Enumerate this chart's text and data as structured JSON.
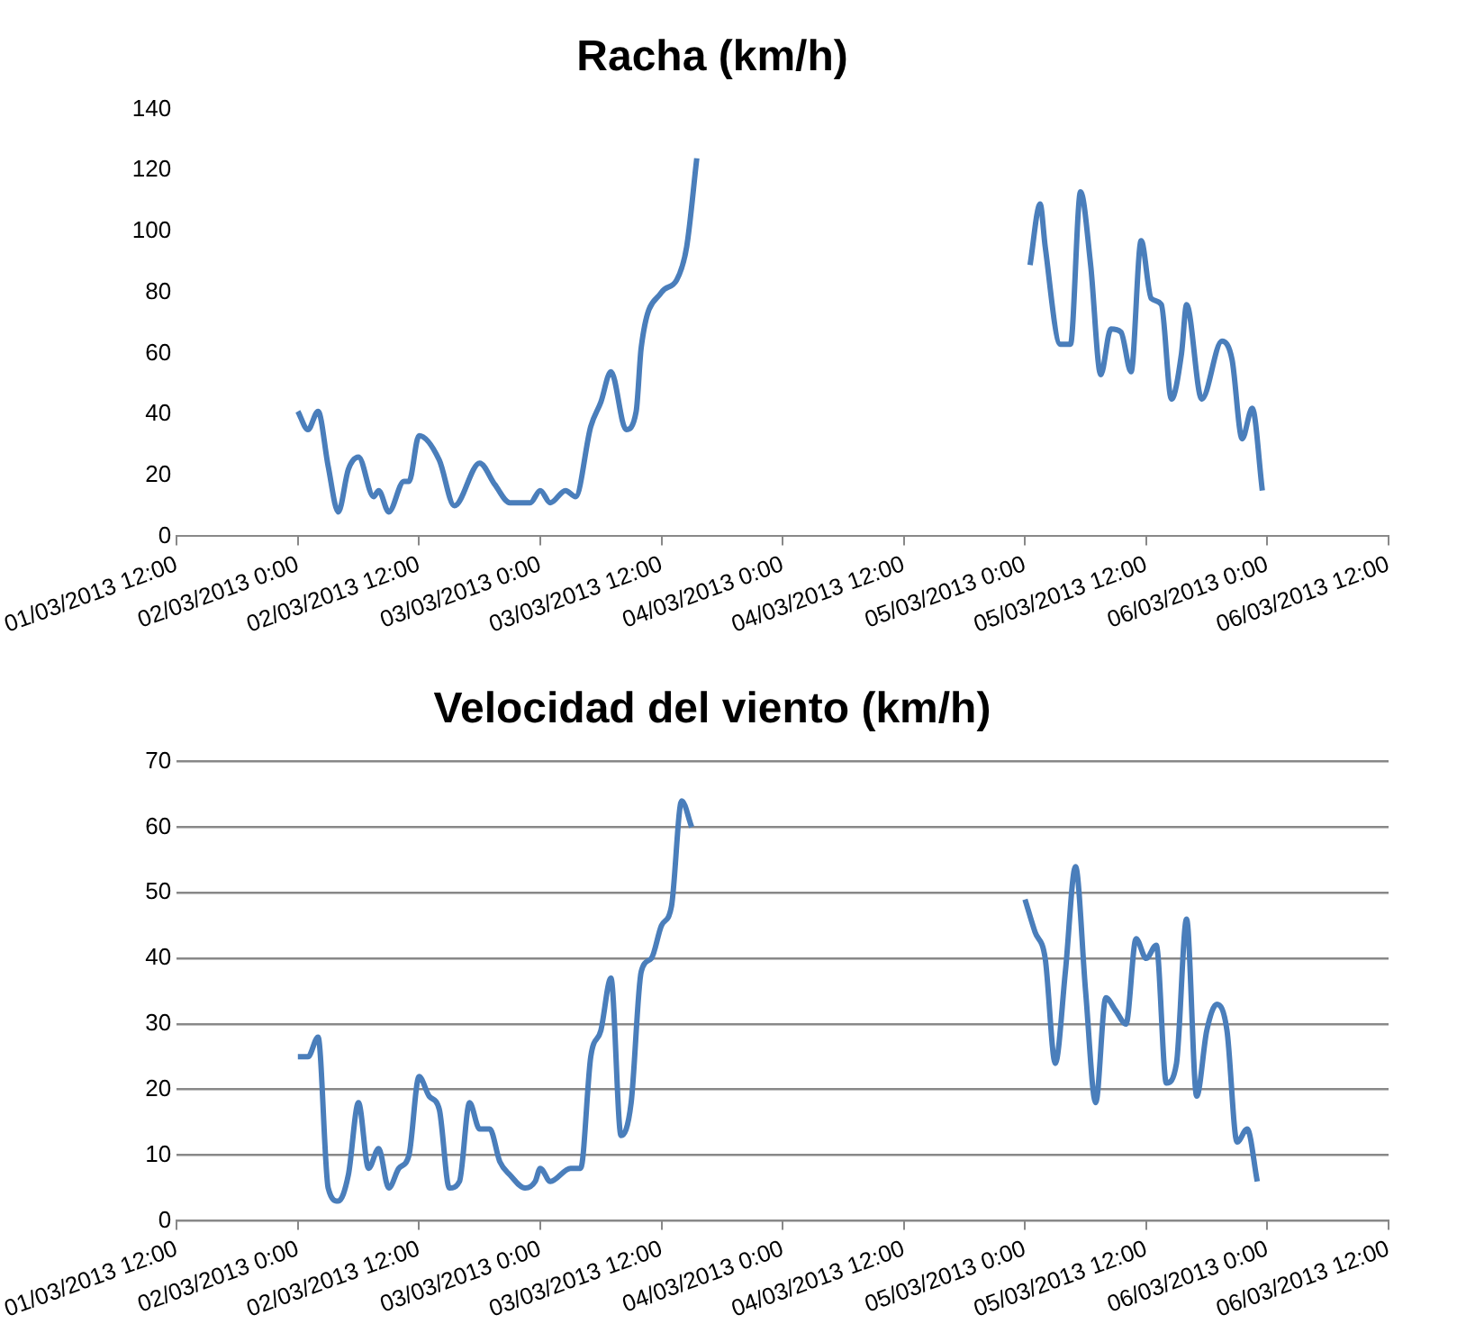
{
  "chart_data": [
    {
      "type": "line",
      "title": "Racha (km/h)",
      "grid": false,
      "marker": "none",
      "line_style": "solid",
      "legend": false,
      "x": [
        "2013-03-02T00:00",
        "2013-03-02T01:00",
        "2013-03-02T02:00",
        "2013-03-02T03:00",
        "2013-03-02T04:00",
        "2013-03-02T05:00",
        "2013-03-02T06:00",
        "2013-03-02T07:30",
        "2013-03-02T08:00",
        "2013-03-02T09:00",
        "2013-03-02T10:30",
        "2013-03-02T11:00",
        "2013-03-02T12:00",
        "2013-03-02T14:00",
        "2013-03-02T15:30",
        "2013-03-02T18:00",
        "2013-03-02T19:30",
        "2013-03-02T21:00",
        "2013-03-02T23:00",
        "2013-03-03T00:00",
        "2013-03-03T01:00",
        "2013-03-03T02:30",
        "2013-03-03T03:30",
        "2013-03-03T05:00",
        "2013-03-03T06:00",
        "2013-03-03T07:00",
        "2013-03-03T08:30",
        "2013-03-03T09:30",
        "2013-03-03T10:00",
        "2013-03-03T12:00",
        "2013-03-03T13:30",
        "2013-03-03T14:30",
        "2013-03-03T15:30",
        "2013-03-04T12:00",
        "2013-03-05T00:30",
        "2013-03-05T01:30",
        "2013-03-05T02:00",
        "2013-03-05T03:30",
        "2013-03-05T04:30",
        "2013-03-05T05:30",
        "2013-03-05T06:30",
        "2013-03-05T07:30",
        "2013-03-05T08:30",
        "2013-03-05T09:30",
        "2013-03-05T10:30",
        "2013-03-05T11:30",
        "2013-03-05T12:30",
        "2013-03-05T13:30",
        "2013-03-05T14:30",
        "2013-03-05T15:30",
        "2013-03-05T16:00",
        "2013-03-05T17:30",
        "2013-03-05T19:30",
        "2013-03-05T20:30",
        "2013-03-05T21:30",
        "2013-03-05T22:30",
        "2013-03-05T23:30"
      ],
      "series": [
        {
          "color": "#4a7ebb",
          "values": [
            41,
            35,
            41,
            23,
            8,
            22,
            26,
            13,
            15,
            8,
            18,
            18,
            33,
            25,
            10,
            24,
            17,
            11,
            11,
            15,
            11,
            15,
            13,
            36,
            44,
            54,
            35,
            41,
            62,
            80,
            84,
            95,
            124,
            null,
            89,
            109,
            95,
            63,
            63,
            113,
            89,
            53,
            68,
            67,
            54,
            97,
            78,
            76,
            45,
            60,
            76,
            45,
            64,
            58,
            32,
            42,
            15
          ]
        }
      ],
      "ylim": [
        0,
        140
      ],
      "yticks": [
        0,
        20,
        40,
        60,
        80,
        100,
        120,
        140
      ],
      "xlim": [
        "2013-03-01T12:00",
        "2013-03-06T12:00"
      ],
      "xticks": [
        {
          "value": "2013-03-01T12:00",
          "label": "01/03/2013 12:00"
        },
        {
          "value": "2013-03-02T00:00",
          "label": "02/03/2013 0:00"
        },
        {
          "value": "2013-03-02T12:00",
          "label": "02/03/2013 12:00"
        },
        {
          "value": "2013-03-03T00:00",
          "label": "03/03/2013 0:00"
        },
        {
          "value": "2013-03-03T12:00",
          "label": "03/03/2013 12:00"
        },
        {
          "value": "2013-03-04T00:00",
          "label": "04/03/2013 0:00"
        },
        {
          "value": "2013-03-04T12:00",
          "label": "04/03/2013 12:00"
        },
        {
          "value": "2013-03-05T00:00",
          "label": "05/03/2013 0:00"
        },
        {
          "value": "2013-03-05T12:00",
          "label": "05/03/2013 12:00"
        },
        {
          "value": "2013-03-06T00:00",
          "label": "06/03/2013 0:00"
        },
        {
          "value": "2013-03-06T12:00",
          "label": "06/03/2013 12:00"
        }
      ]
    },
    {
      "type": "line",
      "title": "Velocidad del viento (km/h)",
      "grid": "y",
      "marker": "none",
      "line_style": "solid",
      "legend": false,
      "x": [
        "2013-03-02T00:00",
        "2013-03-02T01:00",
        "2013-03-02T02:00",
        "2013-03-02T03:00",
        "2013-03-02T04:00",
        "2013-03-02T05:00",
        "2013-03-02T06:00",
        "2013-03-02T07:00",
        "2013-03-02T08:00",
        "2013-03-02T09:00",
        "2013-03-02T10:00",
        "2013-03-02T11:00",
        "2013-03-02T12:00",
        "2013-03-02T13:00",
        "2013-03-02T14:00",
        "2013-03-02T15:00",
        "2013-03-02T16:00",
        "2013-03-02T17:00",
        "2013-03-02T18:00",
        "2013-03-02T19:00",
        "2013-03-02T20:00",
        "2013-03-02T21:00",
        "2013-03-02T22:30",
        "2013-03-02T23:30",
        "2013-03-03T00:00",
        "2013-03-03T01:00",
        "2013-03-03T03:00",
        "2013-03-03T04:00",
        "2013-03-03T05:00",
        "2013-03-03T06:00",
        "2013-03-03T07:00",
        "2013-03-03T08:00",
        "2013-03-03T09:00",
        "2013-03-03T10:00",
        "2013-03-03T11:00",
        "2013-03-03T12:00",
        "2013-03-03T13:00",
        "2013-03-03T14:00",
        "2013-03-03T15:00",
        "2013-03-04T12:00",
        "2013-03-05T00:00",
        "2013-03-05T01:00",
        "2013-03-05T02:00",
        "2013-03-05T03:00",
        "2013-03-05T04:00",
        "2013-03-05T05:00",
        "2013-03-05T06:00",
        "2013-03-05T07:00",
        "2013-03-05T08:00",
        "2013-03-05T09:00",
        "2013-03-05T10:00",
        "2013-03-05T11:00",
        "2013-03-05T12:00",
        "2013-03-05T13:00",
        "2013-03-05T14:00",
        "2013-03-05T15:00",
        "2013-03-05T16:00",
        "2013-03-05T17:00",
        "2013-03-05T18:00",
        "2013-03-05T19:00",
        "2013-03-05T20:00",
        "2013-03-05T21:00",
        "2013-03-05T22:00",
        "2013-03-05T23:00"
      ],
      "series": [
        {
          "color": "#4a7ebb",
          "values": [
            25,
            25,
            28,
            5,
            3,
            7,
            18,
            8,
            11,
            5,
            8,
            10,
            22,
            19,
            17,
            5,
            6,
            18,
            14,
            14,
            9,
            7,
            5,
            6,
            8,
            6,
            8,
            8,
            25,
            29,
            37,
            13,
            18,
            38,
            40,
            45,
            48,
            64,
            60,
            null,
            49,
            44,
            40,
            24,
            38,
            54,
            35,
            18,
            34,
            32,
            30,
            43,
            40,
            42,
            21,
            24,
            46,
            19,
            29,
            33,
            29,
            12,
            14,
            6
          ]
        }
      ],
      "ylim": [
        0,
        70
      ],
      "yticks": [
        0,
        10,
        20,
        30,
        40,
        50,
        60,
        70
      ],
      "xlim": [
        "2013-03-01T12:00",
        "2013-03-06T12:00"
      ],
      "xticks": [
        {
          "value": "2013-03-01T12:00",
          "label": "01/03/2013 12:00"
        },
        {
          "value": "2013-03-02T00:00",
          "label": "02/03/2013 0:00"
        },
        {
          "value": "2013-03-02T12:00",
          "label": "02/03/2013 12:00"
        },
        {
          "value": "2013-03-03T00:00",
          "label": "03/03/2013 0:00"
        },
        {
          "value": "2013-03-03T12:00",
          "label": "03/03/2013 12:00"
        },
        {
          "value": "2013-03-04T00:00",
          "label": "04/03/2013 0:00"
        },
        {
          "value": "2013-03-04T12:00",
          "label": "04/03/2013 12:00"
        },
        {
          "value": "2013-03-05T00:00",
          "label": "05/03/2013 0:00"
        },
        {
          "value": "2013-03-05T12:00",
          "label": "05/03/2013 12:00"
        },
        {
          "value": "2013-03-06T00:00",
          "label": "06/03/2013 0:00"
        },
        {
          "value": "2013-03-06T12:00",
          "label": "06/03/2013 12:00"
        }
      ]
    }
  ]
}
